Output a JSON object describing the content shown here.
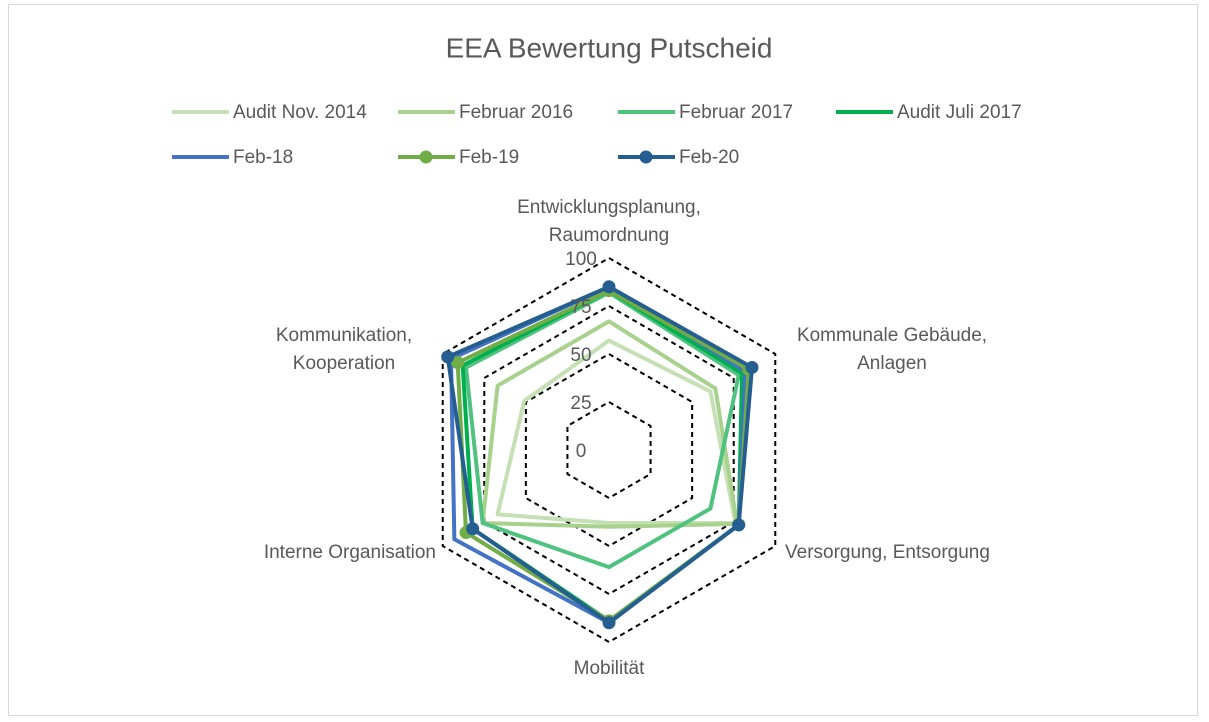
{
  "chart_data": {
    "type": "radar",
    "title": "EEA Bewertung Putscheid",
    "categories": [
      "Entwicklungsplanung, Raumordnung",
      "Kommunale Gebäude, Anlagen",
      "Versorgung, Entsorgung",
      "Mobilität",
      "Interne Organisation",
      "Kommunikation, Kooperation"
    ],
    "ylim": [
      0,
      100
    ],
    "yticks": [
      0,
      25,
      50,
      75,
      100
    ],
    "grid": true,
    "legend": "top",
    "series": [
      {
        "name": "Audit Nov. 2014",
        "color": "#c5e0b4",
        "marker": false,
        "values": [
          57,
          61,
          76,
          38,
          67,
          51
        ]
      },
      {
        "name": "Februar 2016",
        "color": "#a9d18e",
        "marker": false,
        "values": [
          67,
          64,
          77,
          40,
          76,
          67
        ]
      },
      {
        "name": "Februar 2017",
        "color": "#4fc27f",
        "marker": false,
        "values": [
          82,
          78,
          61,
          61,
          76,
          86
        ]
      },
      {
        "name": "Audit Juli 2017",
        "color": "#00b050",
        "marker": false,
        "values": [
          83,
          80,
          78,
          89,
          82,
          88
        ]
      },
      {
        "name": "Feb-18",
        "color": "#4472c4",
        "marker": false,
        "values": [
          85,
          82,
          78,
          90,
          93,
          95
        ]
      },
      {
        "name": "Feb-19",
        "color": "#70ad47",
        "marker": true,
        "values": [
          83,
          84,
          78,
          89,
          86,
          91
        ]
      },
      {
        "name": "Feb-20",
        "color": "#255e91",
        "marker": true,
        "values": [
          85,
          86,
          78,
          90,
          82,
          97
        ]
      }
    ]
  }
}
